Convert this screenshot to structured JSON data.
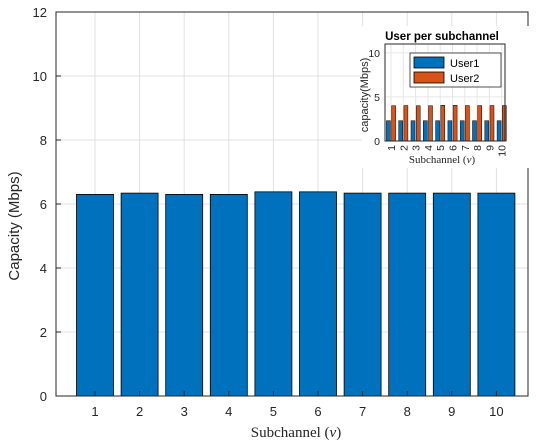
{
  "chart_data": [
    {
      "type": "bar",
      "categories": [
        "1",
        "2",
        "3",
        "4",
        "5",
        "6",
        "7",
        "8",
        "9",
        "10"
      ],
      "values": [
        6.3,
        6.34,
        6.3,
        6.3,
        6.38,
        6.38,
        6.34,
        6.34,
        6.34,
        6.34
      ],
      "ylabel": "Capacity (Mbps)",
      "xlabel_text": "Subchannel (",
      "xlabel_var": "v",
      "xlabel_close": ")",
      "ylim": [
        0,
        12
      ],
      "yticks": [
        "0",
        "2",
        "4",
        "6",
        "8",
        "10",
        "12"
      ],
      "grid": true,
      "bar_color": "#0072BD"
    },
    {
      "type": "bar",
      "title": "User per subchannel",
      "categories": [
        "1",
        "2",
        "3",
        "4",
        "5",
        "6",
        "7",
        "8",
        "9",
        "10"
      ],
      "series": [
        {
          "name": "User1",
          "values": [
            2.3,
            2.3,
            2.3,
            2.3,
            2.3,
            2.3,
            2.3,
            2.3,
            2.3,
            2.3
          ],
          "color": "#0072BD"
        },
        {
          "name": "User2",
          "values": [
            4.0,
            4.02,
            4.0,
            4.0,
            4.05,
            4.05,
            4.02,
            4.02,
            4.02,
            4.02
          ],
          "color": "#D95319"
        }
      ],
      "ylabel": "capacity(Mbps)",
      "xlabel_text": "Subchannel (",
      "xlabel_var": "v",
      "xlabel_close": ")",
      "ylim": [
        0,
        11
      ],
      "yticks": [
        "0",
        "5",
        "10"
      ],
      "legend": "top-right",
      "grid": true
    }
  ]
}
